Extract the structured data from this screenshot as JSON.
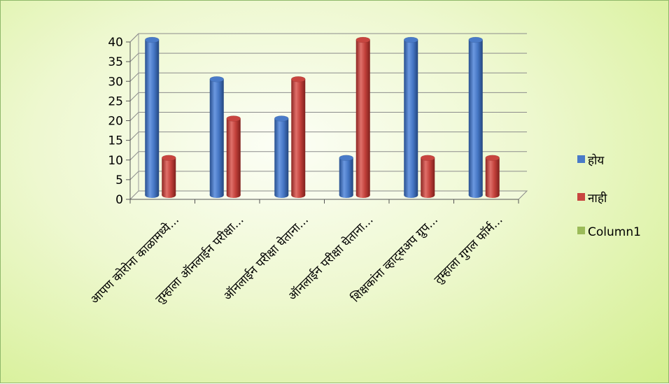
{
  "chart_data": {
    "type": "bar",
    "categories": [
      "आपण कोरोना काळामध्ये...",
      "तुम्हाला ऑनलाईन परीक्षा...",
      "ऑनलाईन परीक्षा घेताना...",
      "ऑनलाईन परीक्षा घेताना...",
      "शिक्षकांना व्हाट्सअप ग्रुप...",
      "तुम्हाला गुगल फॉर्म..."
    ],
    "series": [
      {
        "name": "होय",
        "values": [
          40,
          30,
          20,
          10,
          40,
          40
        ],
        "color": "#4a7bc8"
      },
      {
        "name": "नाही",
        "values": [
          10,
          20,
          30,
          40,
          10,
          10
        ],
        "color": "#c8453f"
      },
      {
        "name": "Column1",
        "values": [
          0,
          0,
          0,
          0,
          0,
          0
        ],
        "color": "#9bbb59"
      }
    ],
    "y_ticks": [
      "0",
      "5",
      "10",
      "15",
      "20",
      "25",
      "30",
      "35",
      "40"
    ],
    "ylim": [
      0,
      40
    ],
    "title": "",
    "xlabel": "",
    "ylabel": "",
    "grid": true,
    "legend_position": "right",
    "style": "3d-cylinder"
  }
}
